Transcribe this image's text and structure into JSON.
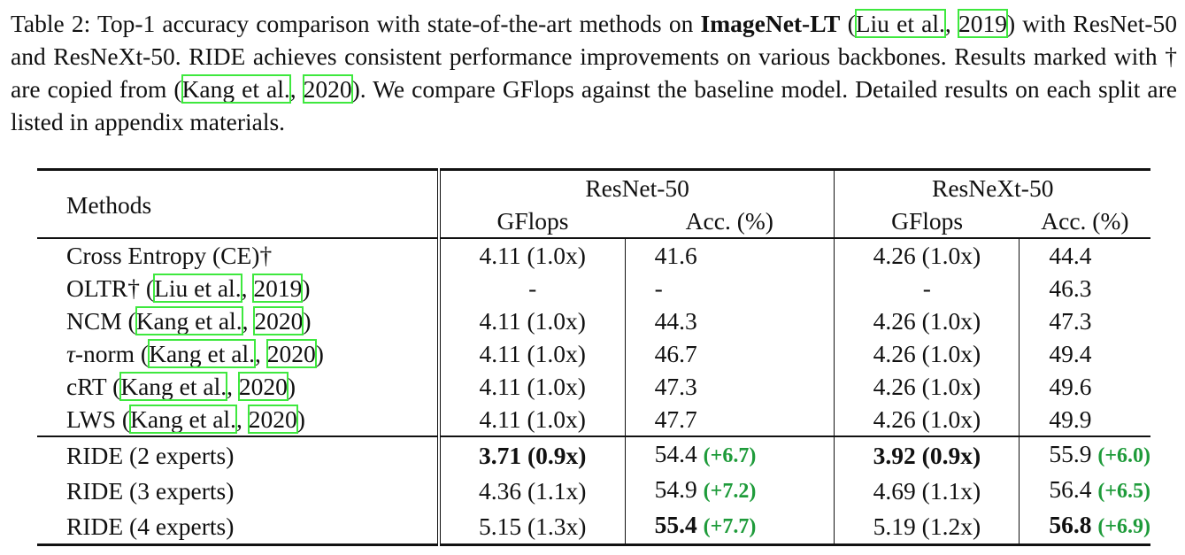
{
  "caption": {
    "prefix": "Table 2: Top-1 accuracy comparison with state-of-the-art methods on ",
    "dataset": "ImageNet-LT",
    "open_paren": " (",
    "cite1_author": "Liu et al.",
    "cite_sep": ", ",
    "cite1_year": "2019",
    "mid": ") with ResNet-50 and ResNeXt-50. RIDE achieves consistent performance improvements on various backbones. Results marked with † are copied from (",
    "cite2_author": "Kang et al.",
    "cite2_year": "2020",
    "suffix": "). We compare GFlops against the baseline model. Detailed results on each split are listed in appendix materials."
  },
  "header": {
    "methods": "Methods",
    "backbone1": "ResNet-50",
    "backbone2": "ResNeXt-50",
    "gflops": "GFlops",
    "acc": "Acc. (%)"
  },
  "baselines": [
    {
      "name": "Cross Entropy (CE)†",
      "g1": "4.11 (1.0x)",
      "a1": "41.6",
      "g2": "4.26 (1.0x)",
      "a2": "44.4"
    },
    {
      "name_pre": "OLTR† (",
      "cite_author": "Liu et al.",
      "cite_sep": ", ",
      "cite_year": "2019",
      "name_post": ")",
      "g1": "-",
      "a1": "-",
      "g2": "-",
      "a2": "46.3"
    },
    {
      "name_pre": "NCM (",
      "cite_author": "Kang et al.",
      "cite_sep": ", ",
      "cite_year": "2020",
      "name_post": ")",
      "g1": "4.11 (1.0x)",
      "a1": "44.3",
      "g2": "4.26 (1.0x)",
      "a2": "47.3"
    },
    {
      "tau": "τ",
      "name_pre": "-norm (",
      "cite_author": "Kang et al.",
      "cite_sep": ", ",
      "cite_year": "2020",
      "name_post": ")",
      "g1": "4.11 (1.0x)",
      "a1": "46.7",
      "g2": "4.26 (1.0x)",
      "a2": "49.4"
    },
    {
      "name_pre": "cRT (",
      "cite_author": "Kang et al.",
      "cite_sep": ", ",
      "cite_year": "2020",
      "name_post": ")",
      "g1": "4.11 (1.0x)",
      "a1": "47.3",
      "g2": "4.26 (1.0x)",
      "a2": "49.6"
    },
    {
      "name_pre": "LWS (",
      "cite_author": "Kang et al.",
      "cite_sep": ", ",
      "cite_year": "2020",
      "name_post": ")",
      "g1": "4.11 (1.0x)",
      "a1": "47.7",
      "g2": "4.26 (1.0x)",
      "a2": "49.9"
    }
  ],
  "ride": [
    {
      "name": "RIDE (2 experts)",
      "g1": "3.71 (0.9x)",
      "a1": "54.4",
      "d1": "(+6.7)",
      "g2": "3.92 (0.9x)",
      "a2": "55.9",
      "d2": "(+6.0)"
    },
    {
      "name": "RIDE (3 experts)",
      "g1": "4.36 (1.1x)",
      "a1": "54.9",
      "d1": "(+7.2)",
      "g2": "4.69 (1.1x)",
      "a2": "56.4",
      "d2": "(+6.5)"
    },
    {
      "name": "RIDE (4 experts)",
      "g1": "5.15 (1.3x)",
      "a1": "55.4",
      "d1": "(+7.7)",
      "g2": "5.19 (1.2x)",
      "a2": "56.8",
      "d2": "(+6.9)"
    }
  ],
  "colors": {
    "citation_box": "#3ee83e",
    "gain_text": "#1e9b3a"
  }
}
